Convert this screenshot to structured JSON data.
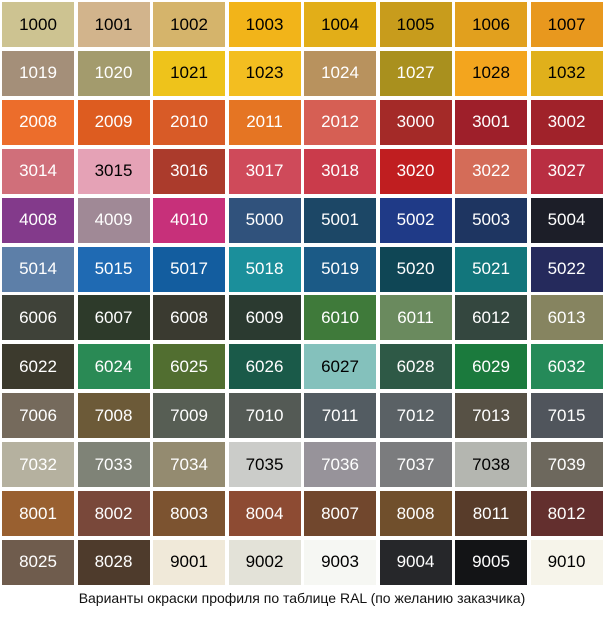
{
  "caption": "Варианты окраски профиля по таблице RAL (по желанию заказчика)",
  "swatches": [
    {
      "code": "1000",
      "color": "#cdc391",
      "text": "#000000"
    },
    {
      "code": "1001",
      "color": "#d2b48c",
      "text": "#000000"
    },
    {
      "code": "1002",
      "color": "#d5b46b",
      "text": "#000000"
    },
    {
      "code": "1003",
      "color": "#f2b419",
      "text": "#000000"
    },
    {
      "code": "1004",
      "color": "#e2ae18",
      "text": "#000000"
    },
    {
      "code": "1005",
      "color": "#c89c1c",
      "text": "#000000"
    },
    {
      "code": "1006",
      "color": "#e1a01e",
      "text": "#000000"
    },
    {
      "code": "1007",
      "color": "#e8981e",
      "text": "#000000"
    },
    {
      "code": "1019",
      "color": "#a48f79",
      "text": "#ffffff"
    },
    {
      "code": "1020",
      "color": "#a39b6d",
      "text": "#ffffff"
    },
    {
      "code": "1021",
      "color": "#eec31b",
      "text": "#000000"
    },
    {
      "code": "1023",
      "color": "#f3be20",
      "text": "#000000"
    },
    {
      "code": "1024",
      "color": "#b8925e",
      "text": "#ffffff"
    },
    {
      "code": "1027",
      "color": "#a9901e",
      "text": "#ffffff"
    },
    {
      "code": "1028",
      "color": "#f3a51e",
      "text": "#000000"
    },
    {
      "code": "1032",
      "color": "#e0b01b",
      "text": "#000000"
    },
    {
      "code": "2008",
      "color": "#ec6d2b",
      "text": "#ffffff"
    },
    {
      "code": "2009",
      "color": "#dd5c20",
      "text": "#ffffff"
    },
    {
      "code": "2010",
      "color": "#d85b27",
      "text": "#ffffff"
    },
    {
      "code": "2011",
      "color": "#e57523",
      "text": "#ffffff"
    },
    {
      "code": "2012",
      "color": "#d65f54",
      "text": "#ffffff"
    },
    {
      "code": "3000",
      "color": "#a42a28",
      "text": "#ffffff"
    },
    {
      "code": "3001",
      "color": "#9e1f2a",
      "text": "#ffffff"
    },
    {
      "code": "3002",
      "color": "#a0222a",
      "text": "#ffffff"
    },
    {
      "code": "3014",
      "color": "#d06f7a",
      "text": "#ffffff"
    },
    {
      "code": "3015",
      "color": "#e5a2b6",
      "text": "#000000"
    },
    {
      "code": "3016",
      "color": "#ab3b2c",
      "text": "#ffffff"
    },
    {
      "code": "3017",
      "color": "#cf4a5a",
      "text": "#ffffff"
    },
    {
      "code": "3018",
      "color": "#ca3b4b",
      "text": "#ffffff"
    },
    {
      "code": "3020",
      "color": "#c01e20",
      "text": "#ffffff"
    },
    {
      "code": "3022",
      "color": "#d46c58",
      "text": "#ffffff"
    },
    {
      "code": "3027",
      "color": "#b92e42",
      "text": "#ffffff"
    },
    {
      "code": "4008",
      "color": "#833a8b",
      "text": "#ffffff"
    },
    {
      "code": "4009",
      "color": "#a08996",
      "text": "#ffffff"
    },
    {
      "code": "4010",
      "color": "#c7307a",
      "text": "#ffffff"
    },
    {
      "code": "5000",
      "color": "#30527c",
      "text": "#ffffff"
    },
    {
      "code": "5001",
      "color": "#1c4766",
      "text": "#ffffff"
    },
    {
      "code": "5002",
      "color": "#1f3a87",
      "text": "#ffffff"
    },
    {
      "code": "5003",
      "color": "#1e3561",
      "text": "#ffffff"
    },
    {
      "code": "5004",
      "color": "#1c1e28",
      "text": "#ffffff"
    },
    {
      "code": "5014",
      "color": "#5d7fa8",
      "text": "#ffffff"
    },
    {
      "code": "5015",
      "color": "#1f6ab3",
      "text": "#ffffff"
    },
    {
      "code": "5017",
      "color": "#135d9f",
      "text": "#ffffff"
    },
    {
      "code": "5018",
      "color": "#1b8f9b",
      "text": "#ffffff"
    },
    {
      "code": "5019",
      "color": "#1b5a86",
      "text": "#ffffff"
    },
    {
      "code": "5020",
      "color": "#0f4655",
      "text": "#ffffff"
    },
    {
      "code": "5021",
      "color": "#12767c",
      "text": "#ffffff"
    },
    {
      "code": "5022",
      "color": "#252a5c",
      "text": "#ffffff"
    },
    {
      "code": "6006",
      "color": "#3f4239",
      "text": "#ffffff"
    },
    {
      "code": "6007",
      "color": "#2d3a2a",
      "text": "#ffffff"
    },
    {
      "code": "6008",
      "color": "#3a3a30",
      "text": "#ffffff"
    },
    {
      "code": "6009",
      "color": "#2b3a30",
      "text": "#ffffff"
    },
    {
      "code": "6010",
      "color": "#3f7a3a",
      "text": "#ffffff"
    },
    {
      "code": "6011",
      "color": "#6a8a5e",
      "text": "#ffffff"
    },
    {
      "code": "6012",
      "color": "#34473f",
      "text": "#ffffff"
    },
    {
      "code": "6013",
      "color": "#868460",
      "text": "#ffffff"
    },
    {
      "code": "6022",
      "color": "#3c3a2d",
      "text": "#ffffff"
    },
    {
      "code": "6024",
      "color": "#2a8a55",
      "text": "#ffffff"
    },
    {
      "code": "6025",
      "color": "#516e30",
      "text": "#ffffff"
    },
    {
      "code": "6026",
      "color": "#1a5a49",
      "text": "#ffffff"
    },
    {
      "code": "6027",
      "color": "#84c1bc",
      "text": "#000000"
    },
    {
      "code": "6028",
      "color": "#2e5946",
      "text": "#ffffff"
    },
    {
      "code": "6029",
      "color": "#1b7a3d",
      "text": "#ffffff"
    },
    {
      "code": "6032",
      "color": "#258a59",
      "text": "#ffffff"
    },
    {
      "code": "7006",
      "color": "#756a5c",
      "text": "#ffffff"
    },
    {
      "code": "7008",
      "color": "#6c5a38",
      "text": "#ffffff"
    },
    {
      "code": "7009",
      "color": "#575e54",
      "text": "#ffffff"
    },
    {
      "code": "7010",
      "color": "#545a55",
      "text": "#ffffff"
    },
    {
      "code": "7011",
      "color": "#535c62",
      "text": "#ffffff"
    },
    {
      "code": "7012",
      "color": "#5a6165",
      "text": "#ffffff"
    },
    {
      "code": "7013",
      "color": "#575145",
      "text": "#ffffff"
    },
    {
      "code": "7015",
      "color": "#50555c",
      "text": "#ffffff"
    },
    {
      "code": "7032",
      "color": "#b5b19f",
      "text": "#ffffff"
    },
    {
      "code": "7033",
      "color": "#7f8377",
      "text": "#ffffff"
    },
    {
      "code": "7034",
      "color": "#948b70",
      "text": "#ffffff"
    },
    {
      "code": "7035",
      "color": "#cbccc9",
      "text": "#000000"
    },
    {
      "code": "7036",
      "color": "#97939a",
      "text": "#ffffff"
    },
    {
      "code": "7037",
      "color": "#7b7c7e",
      "text": "#ffffff"
    },
    {
      "code": "7038",
      "color": "#b4b6b0",
      "text": "#000000"
    },
    {
      "code": "7039",
      "color": "#6d685d",
      "text": "#ffffff"
    },
    {
      "code": "8001",
      "color": "#996030",
      "text": "#ffffff"
    },
    {
      "code": "8002",
      "color": "#79483a",
      "text": "#ffffff"
    },
    {
      "code": "8003",
      "color": "#7c5330",
      "text": "#ffffff"
    },
    {
      "code": "8004",
      "color": "#8d4b33",
      "text": "#ffffff"
    },
    {
      "code": "8007",
      "color": "#71472d",
      "text": "#ffffff"
    },
    {
      "code": "8008",
      "color": "#704f2c",
      "text": "#ffffff"
    },
    {
      "code": "8011",
      "color": "#583c2a",
      "text": "#ffffff"
    },
    {
      "code": "8012",
      "color": "#632f2e",
      "text": "#ffffff"
    },
    {
      "code": "8025",
      "color": "#6f5c4d",
      "text": "#ffffff"
    },
    {
      "code": "8028",
      "color": "#4e3b2c",
      "text": "#ffffff"
    },
    {
      "code": "9001",
      "color": "#f0e9d9",
      "text": "#000000"
    },
    {
      "code": "9002",
      "color": "#e3e2d8",
      "text": "#000000"
    },
    {
      "code": "9003",
      "color": "#f6f7f3",
      "text": "#000000"
    },
    {
      "code": "9004",
      "color": "#26272a",
      "text": "#ffffff"
    },
    {
      "code": "9005",
      "color": "#131416",
      "text": "#ffffff"
    },
    {
      "code": "9010",
      "color": "#f6f4ea",
      "text": "#000000"
    }
  ]
}
